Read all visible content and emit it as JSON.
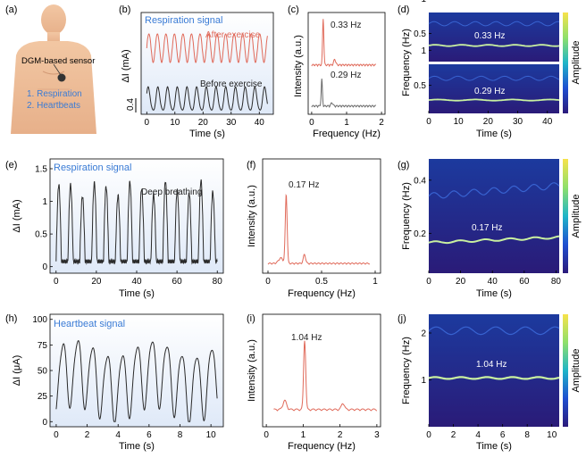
{
  "colors": {
    "black_trace": "#2a2a2a",
    "red_trace": "#e06a5a",
    "blue_title": "#3a7bd5",
    "panel_bg": "#e8f0fb"
  },
  "panel_a": {
    "label": "(a)",
    "sensor_label": "DGM-based sensor",
    "items": [
      "1. Respiration",
      "2. Heartbeats"
    ]
  },
  "chart_data": [
    {
      "id": "b",
      "panel_label": "(b)",
      "type": "line",
      "title": "Respiration signal",
      "xlabel": "Time (s)",
      "ylabel": "ΔI (mA)",
      "xlim": [
        -2,
        45
      ],
      "x_ticks": [
        0,
        10,
        20,
        30,
        40
      ],
      "y_scale_bar": "0.4",
      "series": [
        {
          "name": "After exercise",
          "freq_hz": 0.33,
          "color": "#e06a5a"
        },
        {
          "name": "Before exercise",
          "freq_hz": 0.29,
          "color": "#2a2a2a"
        }
      ]
    },
    {
      "id": "c",
      "panel_label": "(c)",
      "type": "line",
      "xlabel": "Frequency (Hz)",
      "ylabel": "Intensity (a.u.)",
      "xlim": [
        -0.1,
        2.1
      ],
      "x_ticks": [
        0,
        1,
        2
      ],
      "peaks": [
        {
          "label": "0.33 Hz",
          "x": 0.33,
          "color": "#e06a5a"
        },
        {
          "label": "0.29 Hz",
          "x": 0.29,
          "color": "#6a6a6a"
        }
      ]
    },
    {
      "id": "d",
      "panel_label": "(d)",
      "type": "heatmap",
      "xlabel": "Time (s)",
      "ylabel": "Frequency (Hz)",
      "colorbar_label": "Amplitude",
      "xlim": [
        0,
        44
      ],
      "x_ticks": [
        0,
        10,
        20,
        30,
        40
      ],
      "y_ticks": [
        0.5,
        1.0
      ],
      "subplots": [
        {
          "annotation": "0.33 Hz",
          "freq": 0.33
        },
        {
          "annotation": "0.29 Hz",
          "freq": 0.29
        }
      ]
    },
    {
      "id": "e",
      "panel_label": "(e)",
      "type": "line",
      "title": "Respiration signal",
      "annotation": "Deep breathing",
      "xlabel": "Time (s)",
      "ylabel": "ΔI (mA)",
      "xlim": [
        -3,
        83
      ],
      "ylim": [
        -0.1,
        1.65
      ],
      "x_ticks": [
        0,
        20,
        40,
        60,
        80
      ],
      "y_ticks": [
        0,
        0.5,
        1.0,
        1.5
      ],
      "series": [
        {
          "freq_hz": 0.17,
          "amplitude": [
            0.05,
            1.3
          ]
        }
      ]
    },
    {
      "id": "f",
      "panel_label": "(f)",
      "type": "line",
      "xlabel": "Frequency (Hz)",
      "ylabel": "Intensity (a.u.)",
      "xlim": [
        -0.05,
        1.05
      ],
      "x_ticks": [
        0,
        0.5,
        1.0
      ],
      "peaks": [
        {
          "label": "0.17 Hz",
          "x": 0.17
        }
      ]
    },
    {
      "id": "g",
      "panel_label": "(g)",
      "type": "heatmap",
      "xlabel": "Time (s)",
      "ylabel": "Frequency (Hz)",
      "colorbar_label": "Amplitude",
      "xlim": [
        0,
        82
      ],
      "ylim": [
        0.05,
        0.48
      ],
      "x_ticks": [
        0,
        20,
        40,
        60,
        80
      ],
      "y_ticks": [
        0.2,
        0.4
      ],
      "annotation": "0.17 Hz",
      "ridge_freq": 0.17
    },
    {
      "id": "h",
      "panel_label": "(h)",
      "type": "line",
      "title": "Heartbeat signal",
      "xlabel": "Time (s)",
      "ylabel": "ΔI (μA)",
      "xlim": [
        -0.4,
        10.8
      ],
      "ylim": [
        -5,
        105
      ],
      "x_ticks": [
        0,
        2,
        4,
        6,
        8,
        10
      ],
      "y_ticks": [
        0,
        25,
        50,
        75,
        100
      ],
      "series": [
        {
          "freq_hz": 1.04
        }
      ]
    },
    {
      "id": "i",
      "panel_label": "(i)",
      "type": "line",
      "xlabel": "Frequency (Hz)",
      "ylabel": "Intensity (a.u.)",
      "xlim": [
        -0.1,
        3.1
      ],
      "x_ticks": [
        0,
        1,
        2,
        3
      ],
      "peaks": [
        {
          "label": "1.04 Hz",
          "x": 1.04
        }
      ]
    },
    {
      "id": "j",
      "panel_label": "(j)",
      "type": "heatmap",
      "xlabel": "Time (s)",
      "ylabel": "Frequency (Hz)",
      "colorbar_label": "Amplitude",
      "xlim": [
        0,
        10.6
      ],
      "ylim": [
        0,
        2.4
      ],
      "x_ticks": [
        0,
        2,
        4,
        6,
        8,
        10
      ],
      "y_ticks": [
        1,
        2
      ],
      "annotation": "1.04 Hz",
      "ridge_freq": 1.04
    }
  ]
}
